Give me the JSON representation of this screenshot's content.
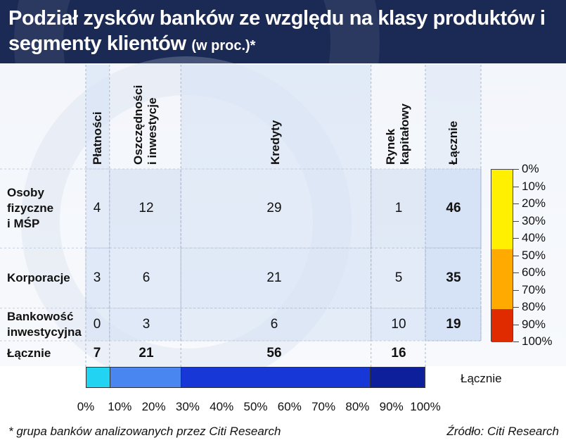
{
  "header": {
    "title": "Podział zysków banków ze względu na klasy produktów i segmenty klientów",
    "title_suffix": "(w proc.)*"
  },
  "chart_data": {
    "type": "table",
    "columns": [
      "Płatności",
      "Oszczędności i inwestycje",
      "Kredyty",
      "Rynek kapitałowy",
      "Łącznie"
    ],
    "rows": [
      {
        "label": "Osoby fizyczne i MŚP",
        "values": [
          4,
          12,
          29,
          1
        ],
        "total": 46
      },
      {
        "label": "Korporacje",
        "values": [
          3,
          6,
          21,
          5
        ],
        "total": 35
      },
      {
        "label": "Bankowość inwestycyjna",
        "values": [
          0,
          3,
          6,
          10
        ],
        "total": 19
      }
    ],
    "totals_row": {
      "label": "Łącznie",
      "values": [
        7,
        21,
        56,
        16
      ]
    },
    "column_shares": [
      7,
      21,
      56,
      16
    ],
    "row_shares": [
      46,
      35,
      19
    ],
    "stacked_bar": {
      "label": "Łącznie",
      "values": [
        7,
        21,
        56,
        16
      ],
      "colors": [
        "#22d3f2",
        "#4a86f0",
        "#1737d6",
        "#0e1f9c"
      ]
    },
    "x_axis_ticks": [
      "0%",
      "10%",
      "20%",
      "30%",
      "40%",
      "50%",
      "60%",
      "70%",
      "80%",
      "90%",
      "100%"
    ],
    "legend": {
      "ticks": [
        "0%",
        "10%",
        "20%",
        "30%",
        "40%",
        "50%",
        "60%",
        "70%",
        "80%",
        "90%",
        "100%"
      ],
      "bands": [
        {
          "from": 0,
          "to": 46,
          "color": "#ffef00"
        },
        {
          "from": 46,
          "to": 81,
          "color": "#ffaa00"
        },
        {
          "from": 81,
          "to": 100,
          "color": "#e02a00"
        }
      ]
    },
    "cell_color": "#d6e2f5"
  },
  "footer": {
    "note": "* grupa banków analizowanych przez Citi Research",
    "source": "Źródło: Citi Research"
  }
}
